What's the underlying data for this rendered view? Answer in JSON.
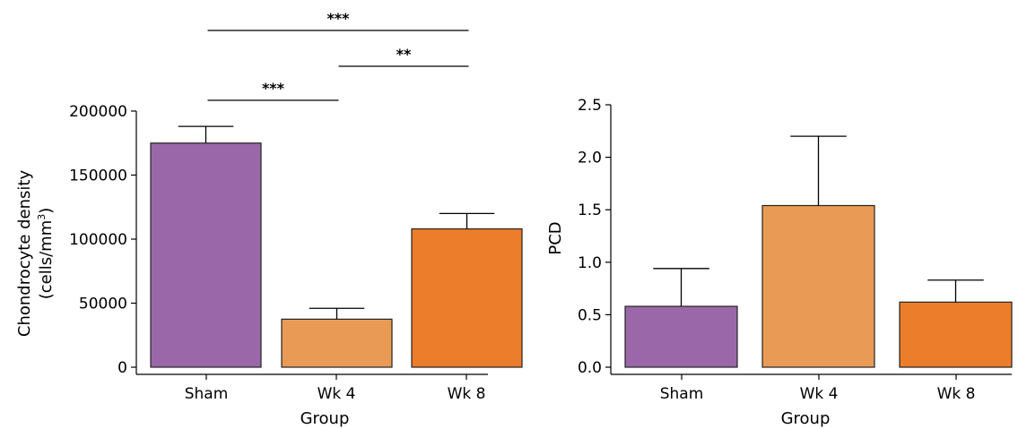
{
  "colors": {
    "Sham": "#9a68a9",
    "Wk 4": "#e99b55",
    "Wk 8": "#ec7d2a"
  },
  "chart_data": [
    {
      "type": "bar",
      "categories": [
        "Sham",
        "Wk 4",
        "Wk 8"
      ],
      "values": [
        175000,
        37500,
        108000
      ],
      "errors": [
        13000,
        8500,
        12000
      ],
      "xlabel": "Group",
      "ylabel": "Chondrocyte density",
      "ylabel_line2": "(cells/mm",
      "ylabel_sup": "3",
      "ylabel_close": ")",
      "ylim": [
        0,
        200000
      ],
      "yticks": [
        "0",
        "50000",
        "100000",
        "150000",
        "200000"
      ],
      "ytick_values": [
        0,
        50000,
        100000,
        150000,
        200000
      ],
      "significance": [
        {
          "from": "Sham",
          "to": "Wk 4",
          "label": "***"
        },
        {
          "from": "Wk 4",
          "to": "Wk 8",
          "label": "**"
        },
        {
          "from": "Sham",
          "to": "Wk 8",
          "label": "***"
        }
      ]
    },
    {
      "type": "bar",
      "categories": [
        "Sham",
        "Wk 4",
        "Wk 8"
      ],
      "values": [
        0.58,
        1.54,
        0.62
      ],
      "errors": [
        0.36,
        0.66,
        0.21
      ],
      "xlabel": "Group",
      "ylabel": "PCD",
      "ylim": [
        0,
        2.5
      ],
      "yticks": [
        "0.0",
        "0.5",
        "1.0",
        "1.5",
        "2.0",
        "2.5"
      ],
      "ytick_values": [
        0,
        0.5,
        1.0,
        1.5,
        2.0,
        2.5
      ]
    }
  ]
}
